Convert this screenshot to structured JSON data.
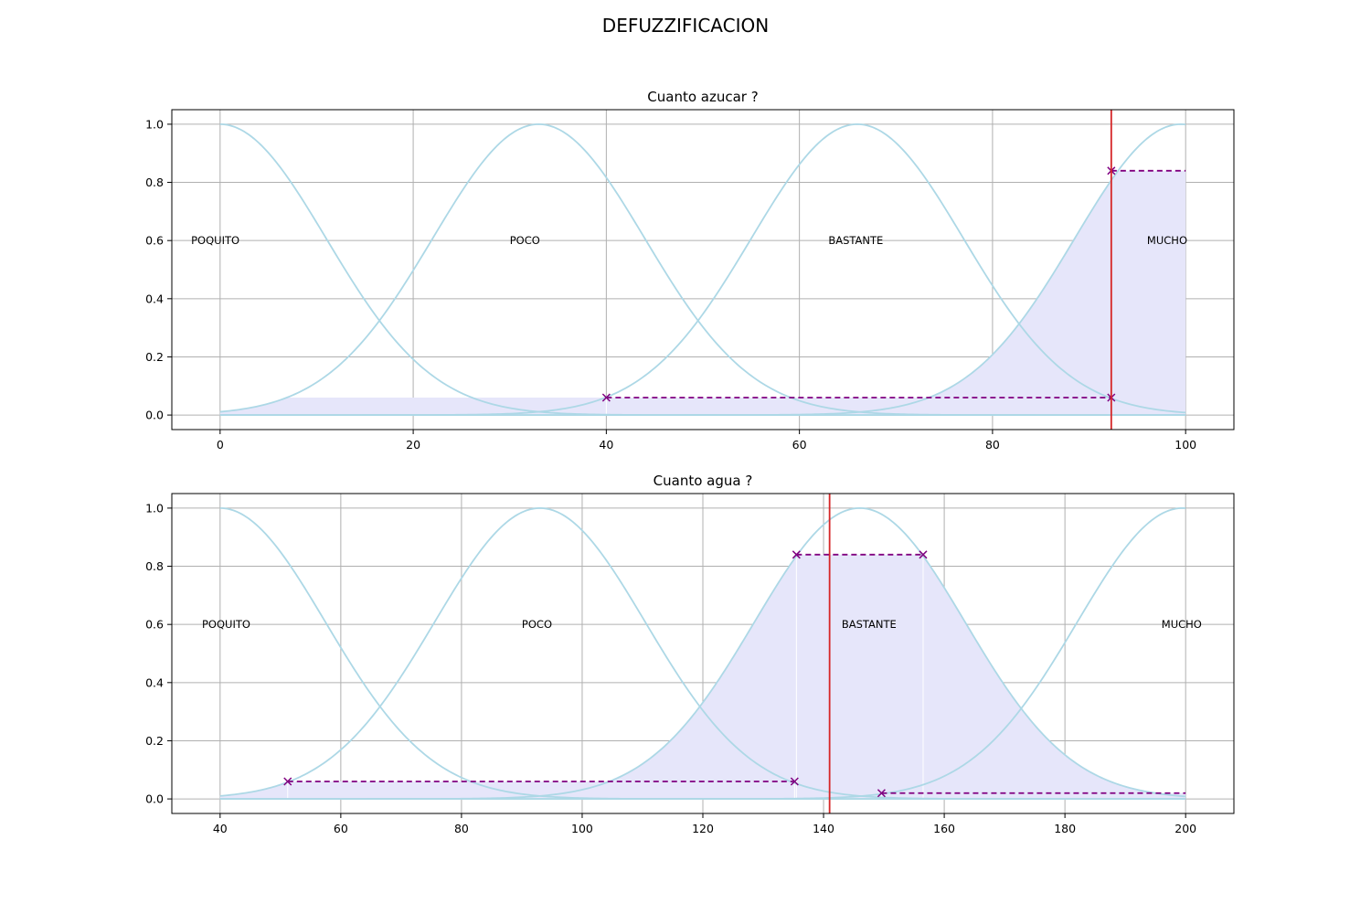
{
  "figure": {
    "title": "DEFUZZIFICACION"
  },
  "colors": {
    "curve": "#add8e6",
    "fill": "#e6e6fa",
    "centroid": "#d62728",
    "cut": "#800080",
    "grid": "#b0b0b0"
  },
  "chart_data": [
    {
      "type": "line",
      "title": "Cuanto azucar ?",
      "xlabel": "",
      "ylabel": "",
      "xlim": [
        -5,
        105
      ],
      "ylim": [
        -0.05,
        1.05
      ],
      "xticks": [
        0,
        20,
        40,
        60,
        80,
        100
      ],
      "yticks": [
        0.0,
        0.2,
        0.4,
        0.6,
        0.8,
        1.0
      ],
      "grid": true,
      "domain": [
        0,
        100
      ],
      "series": [
        {
          "name": "POQUITO",
          "center": 0,
          "sigma": 11.0,
          "label_x": -3,
          "label_y": 0.6
        },
        {
          "name": "POCO",
          "center": 33,
          "sigma": 11.0,
          "label_x": 30,
          "label_y": 0.6
        },
        {
          "name": "BASTANTE",
          "center": 66,
          "sigma": 11.0,
          "label_x": 63,
          "label_y": 0.6
        },
        {
          "name": "MUCHO",
          "center": 99.5,
          "sigma": 11.0,
          "label_x": 96,
          "label_y": 0.6
        }
      ],
      "aggregation": [
        {
          "membership": "POCO",
          "cut": 0.06
        },
        {
          "membership": "BASTANTE",
          "cut": 0.06
        },
        {
          "membership": "MUCHO",
          "cut": 0.84
        }
      ],
      "cut_lines": [
        {
          "x": [
            40,
            92.3
          ],
          "y": 0.06,
          "markers": [
            40,
            92.3
          ]
        },
        {
          "x": [
            92.3,
            100
          ],
          "y": 0.84,
          "markers": [
            92.3
          ]
        }
      ],
      "centroid": 92.3
    },
    {
      "type": "line",
      "title": "Cuanto agua ?",
      "xlabel": "",
      "ylabel": "",
      "xlim": [
        32,
        208
      ],
      "ylim": [
        -0.05,
        1.05
      ],
      "xticks": [
        40,
        60,
        80,
        100,
        120,
        140,
        160,
        180,
        200
      ],
      "yticks": [
        0.0,
        0.2,
        0.4,
        0.6,
        0.8,
        1.0
      ],
      "grid": true,
      "domain": [
        40,
        200
      ],
      "series": [
        {
          "name": "POQUITO",
          "center": 40,
          "sigma": 17.5,
          "label_x": 37,
          "label_y": 0.6
        },
        {
          "name": "POCO",
          "center": 93,
          "sigma": 17.5,
          "label_x": 90,
          "label_y": 0.6
        },
        {
          "name": "BASTANTE",
          "center": 146,
          "sigma": 17.5,
          "label_x": 143,
          "label_y": 0.6
        },
        {
          "name": "MUCHO",
          "center": 199.5,
          "sigma": 17.5,
          "label_x": 196,
          "label_y": 0.6
        }
      ],
      "aggregation": [
        {
          "membership": "POCO",
          "cut": 0.06
        },
        {
          "membership": "BASTANTE",
          "cut": 0.84
        },
        {
          "membership": "MUCHO",
          "cut": 0.02
        }
      ],
      "cut_lines": [
        {
          "x": [
            51.2,
            135.2
          ],
          "y": 0.06,
          "markers": [
            51.2,
            135.2
          ]
        },
        {
          "x": [
            135.5,
            156.5
          ],
          "y": 0.84,
          "markers": [
            135.5,
            156.5
          ]
        },
        {
          "x": [
            149.6,
            200
          ],
          "y": 0.02,
          "markers": [
            149.6
          ]
        }
      ],
      "centroid": 141
    }
  ]
}
